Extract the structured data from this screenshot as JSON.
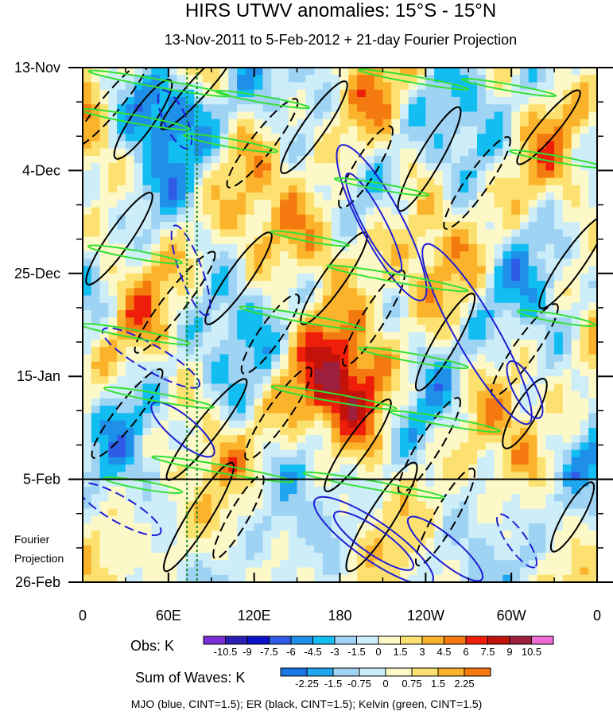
{
  "chart_data": {
    "type": "heatmap",
    "title": "HIRS UTWV anomalies: 15°S - 15°N",
    "subtitle": "13-Nov-2011 to 5-Feb-2012 + 21-day Fourier Projection",
    "x_ticks": [
      "0",
      "60E",
      "120E",
      "180",
      "120W",
      "60W",
      "0"
    ],
    "x_range": [
      0,
      360
    ],
    "y_ticks": [
      "13-Nov",
      "4-Dec",
      "25-Dec",
      "15-Jan",
      "5-Feb",
      "26-Feb"
    ],
    "y_range_days": [
      0,
      105
    ],
    "projection_start_day": 84,
    "projection_label": [
      "Fourier",
      "Projection"
    ],
    "obs_colorbar": {
      "label": "Obs: K",
      "levels": [
        "-10.5",
        "-9",
        "-7.5",
        "-6",
        "-4.5",
        "-3",
        "-1.5",
        "0",
        "1.5",
        "3",
        "4.5",
        "6",
        "7.5",
        "9",
        "10.5"
      ],
      "colors": [
        "#7a2fd6",
        "#2a1fb4",
        "#0c10c8",
        "#2f5be6",
        "#1e90ea",
        "#12bdf2",
        "#9fd3f4",
        "#cdeef8",
        "#fdf8c8",
        "#fde170",
        "#fbb32c",
        "#f47a10",
        "#ee1e0a",
        "#c2120a",
        "#9e1e3e",
        "#f06ad3"
      ]
    },
    "waves_colorbar": {
      "label": "Sum of Waves: K",
      "levels": [
        "-2.25",
        "-1.5",
        "-0.75",
        "0",
        "0.75",
        "1.5",
        "2.25"
      ],
      "colors": [
        "#1a78e6",
        "#1fa6f0",
        "#9fd3f4",
        "#cdeef8",
        "#fdf8c8",
        "#fde170",
        "#fbb32c",
        "#f47a10"
      ]
    },
    "contours": [
      {
        "name": "MJO",
        "color": "#1f1fd4",
        "cint": 1.5
      },
      {
        "name": "ER",
        "color": "#000000",
        "cint": 1.5
      },
      {
        "name": "Kelvin",
        "color": "#33e033",
        "cint": 1.5
      }
    ],
    "footer": "MJO (blue, CINT=1.5); ER (black, CINT=1.5); Kelvin (green, CINT=1.5)"
  }
}
